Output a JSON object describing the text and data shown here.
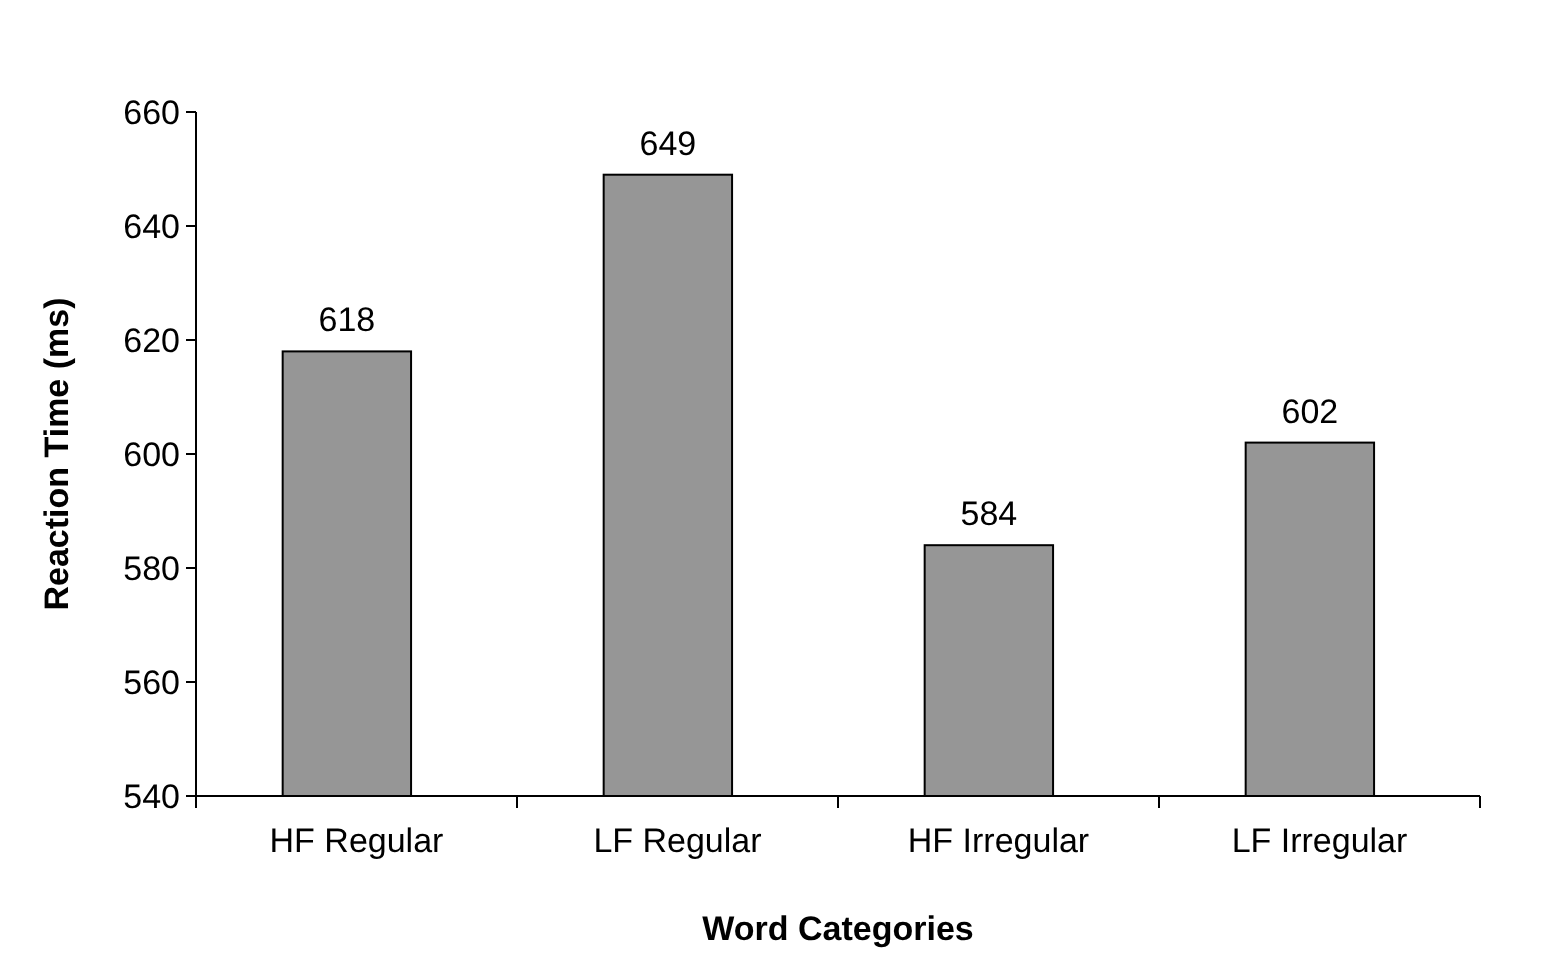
{
  "chart_data": {
    "type": "bar",
    "xlabel": "Word Categories",
    "ylabel": "Reaction Time (ms)",
    "categories": [
      "HF Regular",
      "LF Regular",
      "HF Irregular",
      "LF Irregular"
    ],
    "values": [
      618,
      649,
      584,
      602
    ],
    "color": "#969696",
    "ylim": [
      540,
      660
    ],
    "yticks": [
      540,
      560,
      580,
      600,
      620,
      640,
      660
    ],
    "data_labels": true
  }
}
